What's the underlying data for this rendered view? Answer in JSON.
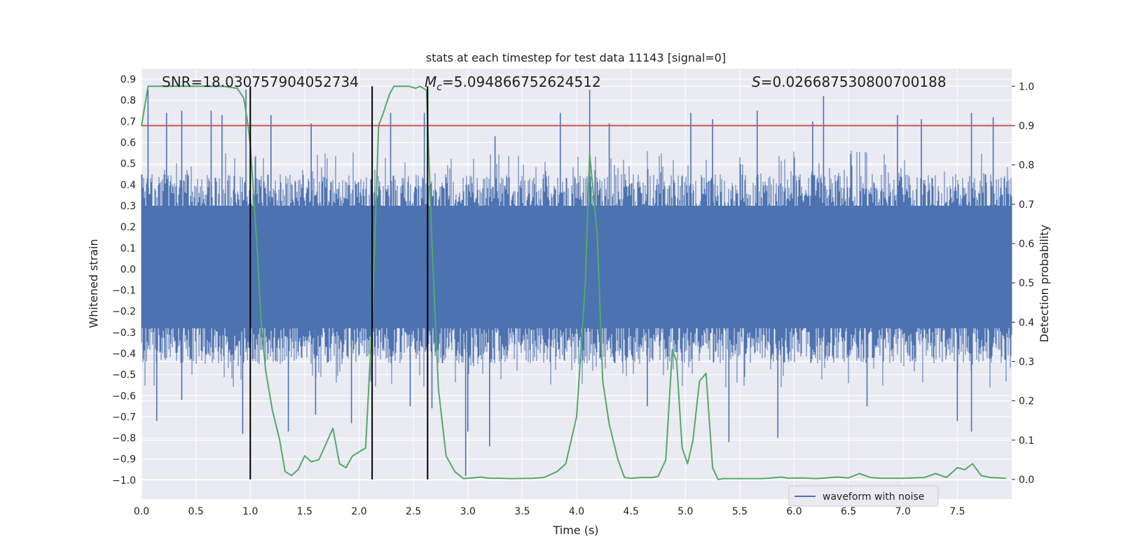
{
  "chart_data": {
    "type": "line",
    "title": "stats at each timestep for test data 11143 [signal=0]",
    "xlabel": "Time (s)",
    "ylabel_left": "Whitened strain",
    "ylabel_right": "Detection probability",
    "xlim": [
      0.0,
      8.0
    ],
    "ylim_left": [
      -1.09,
      0.95
    ],
    "ylim_right": [
      -0.05,
      1.045
    ],
    "grid": true,
    "x_ticks": [
      "0.0",
      "0.5",
      "1.0",
      "1.5",
      "2.0",
      "2.5",
      "3.0",
      "3.5",
      "4.0",
      "4.5",
      "5.0",
      "5.5",
      "6.0",
      "6.5",
      "7.0",
      "7.5"
    ],
    "y_left_ticks": [
      "0.9",
      "0.8",
      "0.7",
      "0.6",
      "0.5",
      "0.4",
      "0.3",
      "0.2",
      "0.1",
      "0.0",
      "-0.1",
      "-0.2",
      "-0.3",
      "-0.4",
      "-0.5",
      "-0.6",
      "-0.7",
      "-0.8",
      "-0.9",
      "-1.0"
    ],
    "y_right_ticks": [
      "1.0",
      "0.9",
      "0.8",
      "0.7",
      "0.6",
      "0.5",
      "0.4",
      "0.3",
      "0.2",
      "0.1",
      "0.0"
    ],
    "annotations": {
      "snr": "SNR=18.030757904052734",
      "mc_symbol": "M",
      "mc_subscript": "c",
      "mc_value": "=5.094866752624512",
      "s_symbol": "S",
      "s_value": "=0.026687530800700188"
    },
    "threshold_right": 0.9,
    "vertical_lines_x": [
      1.0,
      2.12,
      2.63
    ],
    "legend": {
      "label": "waveform with noise",
      "placement": "lower-right"
    },
    "colors": {
      "background": "#eaeaf2",
      "grid": "#ffffff",
      "waveform": "#4c72b0",
      "probability": "#55a868",
      "threshold": "#c44e52",
      "vline": "#000000"
    },
    "series": [
      {
        "name": "waveform with noise",
        "axis": "left",
        "kind": "noise",
        "envelope_upper": 0.45,
        "envelope_lower": -0.45,
        "dense_core": [
          -0.28,
          0.3
        ],
        "peaks": [
          {
            "x": 0.06,
            "y": 0.85
          },
          {
            "x": 0.14,
            "y": -0.72
          },
          {
            "x": 0.23,
            "y": 0.74
          },
          {
            "x": 0.37,
            "y": 0.75
          },
          {
            "x": 0.37,
            "y": -0.62
          },
          {
            "x": 0.64,
            "y": 0.75
          },
          {
            "x": 0.74,
            "y": 0.73
          },
          {
            "x": 0.93,
            "y": -0.78
          },
          {
            "x": 0.96,
            "y": 0.85
          },
          {
            "x": 1.19,
            "y": 0.73
          },
          {
            "x": 1.35,
            "y": -0.77
          },
          {
            "x": 1.56,
            "y": 0.69
          },
          {
            "x": 1.6,
            "y": -0.69
          },
          {
            "x": 1.93,
            "y": -0.73
          },
          {
            "x": 2.29,
            "y": 0.74
          },
          {
            "x": 2.47,
            "y": -0.65
          },
          {
            "x": 2.6,
            "y": 0.74
          },
          {
            "x": 2.67,
            "y": -0.66
          },
          {
            "x": 2.98,
            "y": -0.98
          },
          {
            "x": 3.0,
            "y": -0.77
          },
          {
            "x": 3.2,
            "y": -0.84
          },
          {
            "x": 3.25,
            "y": 0.63
          },
          {
            "x": 3.85,
            "y": 0.74
          },
          {
            "x": 4.12,
            "y": 0.85
          },
          {
            "x": 4.3,
            "y": 0.69
          },
          {
            "x": 4.65,
            "y": -0.65
          },
          {
            "x": 5.05,
            "y": 0.74
          },
          {
            "x": 5.25,
            "y": 0.71
          },
          {
            "x": 5.4,
            "y": -0.82
          },
          {
            "x": 5.66,
            "y": 0.75
          },
          {
            "x": 5.85,
            "y": -0.8
          },
          {
            "x": 6.17,
            "y": 0.7
          },
          {
            "x": 6.27,
            "y": 0.82
          },
          {
            "x": 6.67,
            "y": -0.65
          },
          {
            "x": 6.95,
            "y": 0.73
          },
          {
            "x": 7.17,
            "y": 0.71
          },
          {
            "x": 7.5,
            "y": -0.72
          },
          {
            "x": 7.63,
            "y": 0.74
          },
          {
            "x": 7.63,
            "y": -0.77
          },
          {
            "x": 7.83,
            "y": 0.72
          }
        ]
      },
      {
        "name": "detection probability",
        "axis": "right",
        "x": [
          0.0,
          0.06,
          0.1,
          0.2,
          0.4,
          0.6,
          0.75,
          0.88,
          0.94,
          0.98,
          1.0,
          1.06,
          1.1,
          1.14,
          1.2,
          1.27,
          1.32,
          1.38,
          1.44,
          1.5,
          1.56,
          1.63,
          1.76,
          1.82,
          1.88,
          1.94,
          2.06,
          2.12,
          2.18,
          2.22,
          2.28,
          2.32,
          2.38,
          2.46,
          2.52,
          2.56,
          2.62,
          2.67,
          2.73,
          2.8,
          2.88,
          2.96,
          3.04,
          3.12,
          3.2,
          3.3,
          3.4,
          3.6,
          3.7,
          3.82,
          3.9,
          4.0,
          4.08,
          4.12,
          4.19,
          4.24,
          4.3,
          4.38,
          4.44,
          4.5,
          4.6,
          4.7,
          4.75,
          4.82,
          4.88,
          4.92,
          4.97,
          5.02,
          5.07,
          5.13,
          5.19,
          5.25,
          5.3,
          5.35,
          5.5,
          5.7,
          5.8,
          5.88,
          5.95,
          6.05,
          6.2,
          6.4,
          6.5,
          6.6,
          6.7,
          6.8,
          6.9,
          7.0,
          7.1,
          7.2,
          7.3,
          7.4,
          7.5,
          7.57,
          7.64,
          7.72,
          7.8,
          7.95
        ],
        "values": [
          0.9,
          1.0,
          1.0,
          1.0,
          1.0,
          1.0,
          1.0,
          0.995,
          0.97,
          0.9,
          0.85,
          0.6,
          0.4,
          0.28,
          0.18,
          0.1,
          0.02,
          0.01,
          0.025,
          0.06,
          0.045,
          0.05,
          0.13,
          0.04,
          0.03,
          0.06,
          0.08,
          0.4,
          0.9,
          0.93,
          0.98,
          1.0,
          1.0,
          1.0,
          0.995,
          1.0,
          0.99,
          0.6,
          0.23,
          0.06,
          0.02,
          0.002,
          0.004,
          0.006,
          0.003,
          0.003,
          0.002,
          0.003,
          0.005,
          0.02,
          0.04,
          0.16,
          0.5,
          0.83,
          0.62,
          0.25,
          0.14,
          0.05,
          0.005,
          0.003,
          0.005,
          0.005,
          0.008,
          0.05,
          0.33,
          0.3,
          0.08,
          0.04,
          0.1,
          0.25,
          0.27,
          0.03,
          0.0,
          0.002,
          0.002,
          0.002,
          0.004,
          0.006,
          0.003,
          0.004,
          0.002,
          0.006,
          0.004,
          0.015,
          0.005,
          0.003,
          0.003,
          0.003,
          0.004,
          0.005,
          0.015,
          0.005,
          0.03,
          0.025,
          0.04,
          0.01,
          0.005,
          0.003
        ]
      }
    ]
  }
}
